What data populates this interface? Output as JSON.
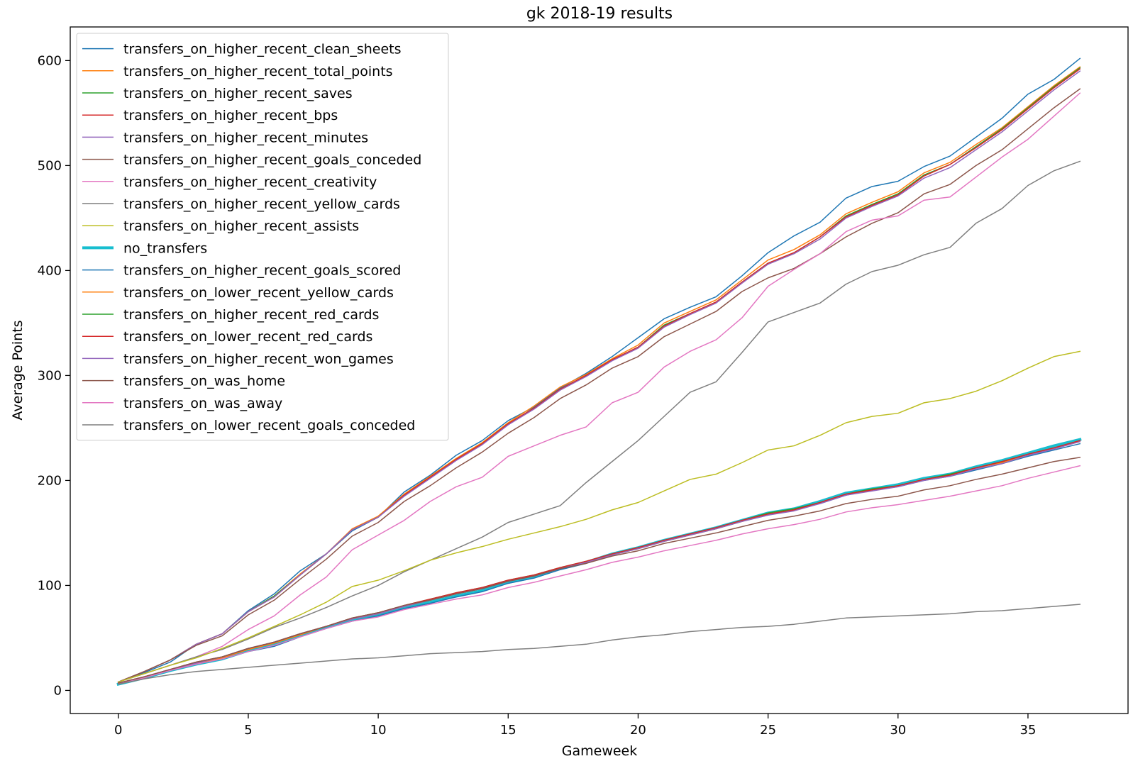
{
  "chart_data": {
    "type": "line",
    "title": "gk 2018-19 results",
    "xlabel": "Gameweek",
    "ylabel": "Average Points",
    "xlim": [
      -1.85,
      38.85
    ],
    "ylim": [
      -22,
      632
    ],
    "xticks": [
      0,
      5,
      10,
      15,
      20,
      25,
      30,
      35
    ],
    "yticks": [
      0,
      100,
      200,
      300,
      400,
      500,
      600
    ],
    "grid": false,
    "legend_position": "upper-left",
    "x": [
      0,
      1,
      2,
      3,
      4,
      5,
      6,
      7,
      8,
      9,
      10,
      11,
      12,
      13,
      14,
      15,
      16,
      17,
      18,
      19,
      20,
      21,
      22,
      23,
      24,
      25,
      26,
      27,
      28,
      29,
      30,
      31,
      32,
      33,
      34,
      35,
      36,
      37
    ],
    "series": [
      {
        "name": "transfers_on_higher_recent_clean_sheets",
        "color": "#1f77b4",
        "width": 1.5,
        "values": [
          8,
          17,
          27,
          44,
          54,
          76,
          92,
          114,
          130,
          152,
          165,
          189,
          205,
          224,
          238,
          257,
          270,
          288,
          302,
          318,
          336,
          354,
          365,
          375,
          395,
          417,
          433,
          446,
          469,
          480,
          485,
          499,
          509,
          527,
          545,
          568,
          582,
          602
        ]
      },
      {
        "name": "transfers_on_higher_recent_total_points",
        "color": "#ff7f0e",
        "width": 1.5,
        "values": [
          8,
          18,
          29,
          44,
          54,
          75,
          90,
          111,
          130,
          154,
          166,
          187,
          204,
          221,
          236,
          255,
          271,
          289,
          301,
          316,
          329,
          350,
          361,
          372,
          391,
          410,
          420,
          434,
          454,
          465,
          475,
          493,
          503,
          520,
          536,
          556,
          576,
          594
        ]
      },
      {
        "name": "transfers_on_higher_recent_saves",
        "color": "#2ca02c",
        "width": 1.5,
        "values": [
          8,
          18,
          29,
          44,
          54,
          75,
          90,
          110,
          130,
          153,
          165,
          186,
          203,
          220,
          235,
          254,
          269,
          287,
          300,
          315,
          327,
          348,
          359,
          370,
          389,
          407,
          417,
          432,
          452,
          463,
          473,
          491,
          501,
          518,
          535,
          555,
          575,
          593
        ]
      },
      {
        "name": "transfers_on_higher_recent_bps",
        "color": "#d62728",
        "width": 1.5,
        "values": [
          8,
          18,
          29,
          44,
          54,
          75,
          89,
          110,
          130,
          153,
          165,
          186,
          203,
          220,
          235,
          254,
          269,
          287,
          300,
          315,
          327,
          347,
          359,
          370,
          389,
          407,
          417,
          432,
          451,
          462,
          472,
          490,
          501,
          517,
          534,
          554,
          574,
          592
        ]
      },
      {
        "name": "transfers_on_higher_recent_minutes",
        "color": "#9467bd",
        "width": 1.5,
        "values": [
          8,
          18,
          29,
          44,
          54,
          75,
          89,
          110,
          130,
          153,
          165,
          185,
          202,
          219,
          234,
          253,
          268,
          286,
          299,
          314,
          326,
          346,
          358,
          369,
          388,
          406,
          416,
          430,
          450,
          461,
          471,
          488,
          498,
          515,
          532,
          552,
          572,
          590
        ]
      },
      {
        "name": "transfers_on_higher_recent_goals_conceded",
        "color": "#8c564b",
        "width": 1.5,
        "values": [
          8,
          18,
          29,
          43,
          52,
          72,
          86,
          106,
          125,
          147,
          160,
          180,
          195,
          212,
          227,
          245,
          260,
          278,
          291,
          307,
          318,
          337,
          349,
          361,
          380,
          393,
          402,
          416,
          432,
          445,
          455,
          473,
          482,
          500,
          515,
          535,
          555,
          573
        ]
      },
      {
        "name": "transfers_on_higher_recent_creativity",
        "color": "#e377c2",
        "width": 1.5,
        "values": [
          8,
          16,
          24,
          32,
          42,
          58,
          71,
          91,
          108,
          134,
          148,
          162,
          180,
          194,
          203,
          223,
          233,
          243,
          251,
          274,
          284,
          308,
          323,
          334,
          355,
          385,
          401,
          416,
          437,
          448,
          452,
          467,
          470,
          489,
          508,
          525,
          547,
          569
        ]
      },
      {
        "name": "transfers_on_higher_recent_yellow_cards",
        "color": "#7f7f7f",
        "width": 1.5,
        "values": [
          8,
          16,
          24,
          32,
          39,
          49,
          60,
          69,
          79,
          90,
          100,
          113,
          124,
          135,
          146,
          160,
          168,
          176,
          198,
          218,
          238,
          261,
          284,
          294,
          322,
          351,
          360,
          369,
          387,
          399,
          405,
          415,
          422,
          445,
          459,
          481,
          495,
          504
        ]
      },
      {
        "name": "transfers_on_higher_recent_assists",
        "color": "#bcbd22",
        "width": 1.5,
        "values": [
          8,
          16,
          24,
          31,
          40,
          50,
          61,
          72,
          84,
          99,
          105,
          114,
          124,
          131,
          137,
          144,
          150,
          156,
          163,
          172,
          179,
          190,
          201,
          206,
          217,
          229,
          233,
          243,
          255,
          261,
          264,
          274,
          278,
          285,
          295,
          307,
          318,
          323
        ]
      },
      {
        "name": "no_transfers",
        "color": "#17becf",
        "width": 4,
        "values": [
          6,
          12,
          19,
          25,
          30,
          38,
          44,
          53,
          60,
          67,
          72,
          79,
          84,
          90,
          95,
          103,
          108,
          116,
          122,
          130,
          136,
          143,
          149,
          155,
          162,
          169,
          173,
          180,
          188,
          192,
          196,
          202,
          206,
          213,
          219,
          226,
          233,
          239
        ]
      },
      {
        "name": "transfers_on_higher_recent_goals_scored",
        "color": "#1f77b4",
        "width": 1.5,
        "values": [
          6,
          12,
          19,
          25,
          30,
          37,
          42,
          51,
          59,
          66,
          71,
          78,
          83,
          89,
          94,
          102,
          107,
          115,
          121,
          129,
          135,
          142,
          148,
          154,
          161,
          167,
          172,
          178,
          186,
          191,
          194,
          200,
          204,
          210,
          216,
          223,
          229,
          235
        ]
      },
      {
        "name": "transfers_on_lower_recent_yellow_cards",
        "color": "#ff7f0e",
        "width": 1.5,
        "values": [
          7,
          13,
          20,
          26,
          31,
          39,
          45,
          53,
          61,
          68,
          73,
          80,
          86,
          92,
          97,
          104,
          109,
          117,
          122,
          129,
          135,
          142,
          148,
          154,
          161,
          168,
          172,
          179,
          187,
          191,
          195,
          201,
          205,
          212,
          217,
          225,
          231,
          237
        ]
      },
      {
        "name": "transfers_on_higher_recent_red_cards",
        "color": "#2ca02c",
        "width": 1.5,
        "values": [
          7,
          13,
          20,
          27,
          32,
          40,
          46,
          54,
          61,
          69,
          74,
          81,
          87,
          93,
          98,
          105,
          110,
          117,
          123,
          130,
          136,
          143,
          149,
          155,
          162,
          169,
          173,
          179,
          187,
          192,
          195,
          201,
          206,
          212,
          218,
          225,
          231,
          238
        ]
      },
      {
        "name": "transfers_on_lower_recent_red_cards",
        "color": "#d62728",
        "width": 1.5,
        "values": [
          7,
          13,
          20,
          27,
          32,
          40,
          46,
          54,
          61,
          69,
          74,
          81,
          87,
          93,
          98,
          105,
          110,
          117,
          123,
          130,
          136,
          143,
          149,
          155,
          162,
          168,
          172,
          179,
          187,
          191,
          195,
          201,
          205,
          212,
          218,
          225,
          231,
          238
        ]
      },
      {
        "name": "transfers_on_higher_recent_won_games",
        "color": "#9467bd",
        "width": 1.5,
        "values": [
          7,
          13,
          20,
          26,
          32,
          40,
          46,
          54,
          61,
          68,
          73,
          80,
          86,
          92,
          97,
          104,
          109,
          116,
          122,
          129,
          135,
          142,
          148,
          154,
          161,
          167,
          171,
          178,
          186,
          190,
          194,
          200,
          204,
          211,
          216,
          224,
          230,
          237
        ]
      },
      {
        "name": "transfers_on_was_home",
        "color": "#8c564b",
        "width": 1.5,
        "values": [
          7,
          13,
          20,
          27,
          32,
          40,
          46,
          54,
          61,
          69,
          74,
          81,
          86,
          92,
          97,
          104,
          109,
          116,
          121,
          128,
          133,
          140,
          145,
          150,
          156,
          162,
          166,
          171,
          178,
          182,
          185,
          191,
          195,
          201,
          206,
          212,
          218,
          222
        ]
      },
      {
        "name": "transfers_on_was_away",
        "color": "#e377c2",
        "width": 1.5,
        "values": [
          6,
          12,
          19,
          25,
          30,
          37,
          43,
          51,
          59,
          66,
          70,
          77,
          82,
          87,
          91,
          98,
          103,
          109,
          115,
          122,
          127,
          133,
          138,
          143,
          149,
          154,
          158,
          163,
          170,
          174,
          177,
          181,
          185,
          190,
          195,
          202,
          208,
          214
        ]
      },
      {
        "name": "transfers_on_lower_recent_goals_conceded",
        "color": "#7f7f7f",
        "width": 1.5,
        "values": [
          6,
          11,
          15,
          18,
          20,
          22,
          24,
          26,
          28,
          30,
          31,
          33,
          35,
          36,
          37,
          39,
          40,
          42,
          44,
          48,
          51,
          53,
          56,
          58,
          60,
          61,
          63,
          66,
          69,
          70,
          71,
          72,
          73,
          75,
          76,
          78,
          80,
          82
        ]
      }
    ]
  }
}
